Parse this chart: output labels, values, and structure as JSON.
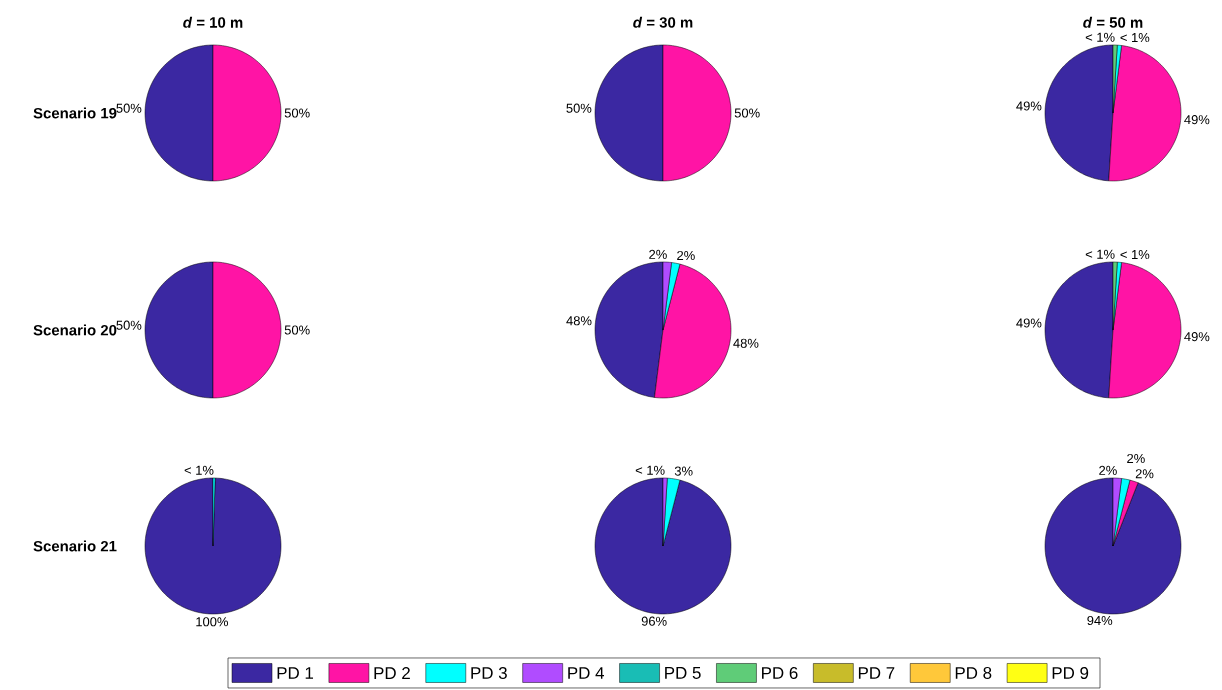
{
  "chart_data": [
    {
      "type": "pie",
      "title": "*d* = 10 m",
      "ylabel": "Scenario 19",
      "legend": "bottom",
      "categories": [
        "PD 1",
        "PD 2",
        "PD 3",
        "PD 4",
        "PD 5",
        "PD 6",
        "PD 7",
        "PD 8",
        "PD 9"
      ],
      "values": [
        50,
        50,
        0,
        0,
        0,
        0,
        0,
        0,
        0
      ],
      "value_labels": [
        "50%",
        "50%",
        null,
        null,
        null,
        null,
        null,
        null,
        null
      ],
      "colors": [
        "#3b28a2",
        "#ff14a5",
        "#00ffff",
        "#b04cff",
        "#19bdb5",
        "#5fcc78",
        "#c8bc2a",
        "#ffc83a",
        "#ffff14"
      ]
    },
    {
      "type": "pie",
      "title": "*d* = 30 m",
      "categories": [
        null,
        null,
        null,
        null,
        null,
        null,
        null,
        null,
        null
      ],
      "values": [
        50,
        50,
        0,
        0,
        0,
        0,
        0,
        0,
        0
      ],
      "value_labels": [
        "50%",
        "50%",
        null,
        null,
        null,
        null,
        null,
        null,
        null
      ],
      "colors": [
        "#3b28a2",
        "#ff14a5",
        "#00ffff",
        "#b04cff",
        "#19bdb5",
        "#5fcc78",
        "#c8bc2a",
        "#ffc83a",
        "#ffff14"
      ]
    },
    {
      "type": "pie",
      "title": "*d* = 50 m",
      "categories": [
        null,
        null,
        null,
        null,
        null,
        null,
        null,
        null,
        null
      ],
      "values": [
        49,
        49,
        1,
        0,
        0,
        1,
        0,
        0,
        0
      ],
      "value_labels": [
        "49%",
        "49%",
        "< 1%",
        null,
        null,
        "< 1%",
        null,
        null,
        null
      ],
      "colors": [
        "#3b28a2",
        "#ff14a5",
        "#00ffff",
        "#b04cff",
        "#19bdb5",
        "#5fcc78",
        "#c8bc2a",
        "#ffc83a",
        "#ffff14"
      ]
    },
    {
      "type": "pie",
      "ylabel": "Scenario 20",
      "categories": [
        null,
        null,
        null,
        null,
        null,
        null,
        null,
        null,
        null
      ],
      "values": [
        50,
        50,
        0,
        0,
        0,
        0,
        0,
        0,
        0
      ],
      "value_labels": [
        "50%",
        "50%",
        null,
        null,
        null,
        null,
        null,
        null,
        null
      ],
      "colors": [
        "#3b28a2",
        "#ff14a5",
        "#00ffff",
        "#b04cff",
        "#19bdb5",
        "#5fcc78",
        "#c8bc2a",
        "#ffc83a",
        "#ffff14"
      ]
    },
    {
      "type": "pie",
      "categories": [
        null,
        null,
        null,
        null,
        null,
        null,
        null,
        null,
        null
      ],
      "values": [
        48,
        48,
        2,
        2,
        0,
        0,
        0,
        0,
        0
      ],
      "value_labels": [
        "48%",
        "48%",
        "2%",
        "2%",
        null,
        null,
        null,
        null,
        null
      ],
      "colors": [
        "#3b28a2",
        "#ff14a5",
        "#00ffff",
        "#b04cff",
        "#19bdb5",
        "#5fcc78",
        "#c8bc2a",
        "#ffc83a",
        "#ffff14"
      ]
    },
    {
      "type": "pie",
      "categories": [
        null,
        null,
        null,
        null,
        null,
        null,
        null,
        null,
        null
      ],
      "values": [
        49,
        49,
        1,
        0,
        0,
        1,
        0,
        0,
        0
      ],
      "value_labels": [
        "49%",
        "49%",
        "< 1%",
        null,
        null,
        "< 1%",
        null,
        null,
        null
      ],
      "colors": [
        "#3b28a2",
        "#ff14a5",
        "#00ffff",
        "#b04cff",
        "#19bdb5",
        "#5fcc78",
        "#c8bc2a",
        "#ffc83a",
        "#ffff14"
      ]
    },
    {
      "type": "pie",
      "ylabel": "Scenario 21",
      "categories": [
        null,
        null,
        null,
        null,
        null,
        null,
        null,
        null,
        null
      ],
      "values": [
        99.5,
        0,
        0.5,
        0,
        0,
        0,
        0,
        0,
        0
      ],
      "value_labels": [
        "100%",
        null,
        "< 1%",
        null,
        null,
        null,
        null,
        null,
        null
      ],
      "colors": [
        "#3b28a2",
        "#ff14a5",
        "#00ffff",
        "#b04cff",
        "#19bdb5",
        "#5fcc78",
        "#c8bc2a",
        "#ffc83a",
        "#ffff14"
      ]
    },
    {
      "type": "pie",
      "categories": [
        null,
        null,
        null,
        null,
        null,
        null,
        null,
        null,
        null
      ],
      "values": [
        96,
        0,
        3,
        1,
        0,
        0,
        0,
        0,
        0
      ],
      "value_labels": [
        "96%",
        null,
        "3%",
        "< 1%",
        null,
        null,
        null,
        null,
        null
      ],
      "colors": [
        "#3b28a2",
        "#ff14a5",
        "#00ffff",
        "#b04cff",
        "#19bdb5",
        "#5fcc78",
        "#c8bc2a",
        "#ffc83a",
        "#ffff14"
      ]
    },
    {
      "type": "pie",
      "categories": [
        null,
        null,
        null,
        null,
        null,
        null,
        null,
        null,
        null
      ],
      "values": [
        94,
        2,
        2,
        2,
        0,
        0,
        0,
        0,
        0
      ],
      "value_labels": [
        "94%",
        "2%",
        "2%",
        "2%",
        null,
        null,
        null,
        null,
        null
      ],
      "colors": [
        "#3b28a2",
        "#ff14a5",
        "#00ffff",
        "#b04cff",
        "#19bdb5",
        "#5fcc78",
        "#c8bc2a",
        "#ffc83a",
        "#ffff14"
      ]
    }
  ]
}
